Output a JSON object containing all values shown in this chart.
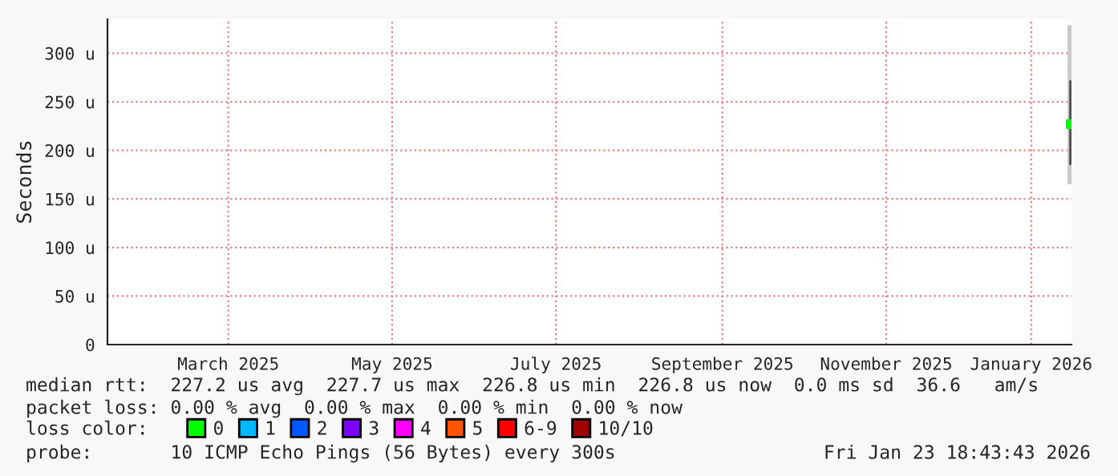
{
  "chart_data": {
    "type": "bar",
    "ylabel": "Seconds",
    "x": [
      "2026-01-22T18:00"
    ],
    "series": [
      {
        "color": "#c8c8c8",
        "base": [
          165
        ],
        "values": [
          164
        ]
      },
      {
        "color": "#505050",
        "base": [
          185
        ],
        "values": [
          87
        ]
      },
      {
        "type": "scatter",
        "name": "0",
        "color": "#00ff00",
        "values": [
          227
        ]
      },
      {
        "type": "scatter",
        "name": "1",
        "color": "#00b8ff",
        "values": [
          null
        ]
      },
      {
        "type": "scatter",
        "name": "2",
        "color": "#0059ff",
        "values": [
          null
        ]
      },
      {
        "type": "scatter",
        "name": "3",
        "color": "#7e00ff",
        "values": [
          null
        ]
      },
      {
        "type": "scatter",
        "name": "4",
        "color": "#ff00ff",
        "values": [
          null
        ]
      },
      {
        "type": "scatter",
        "name": "5",
        "color": "#ff5500",
        "values": [
          null
        ]
      },
      {
        "type": "scatter",
        "name": "6-9",
        "color": "#ff0000",
        "values": [
          null
        ]
      },
      {
        "type": "scatter",
        "name": "10/10",
        "color": "#a10000",
        "values": [
          null
        ]
      }
    ],
    "marker": "square",
    "xlim": [
      "2025-01-29",
      "2026-01-23"
    ],
    "xticks": [
      {
        "value": "2025-03-15",
        "label": "March 2025"
      },
      {
        "value": "2025-05-15",
        "label": "May 2025"
      },
      {
        "value": "2025-07-15",
        "label": "July 2025"
      },
      {
        "value": "2025-09-15",
        "label": "September 2025"
      },
      {
        "value": "2025-11-15",
        "label": "November 2025"
      },
      {
        "value": "2026-01-08",
        "label": "January 2026"
      }
    ],
    "ylim": [
      0,
      335
    ],
    "yticks": [
      0,
      {
        "value": 50,
        "label": "50 u"
      },
      {
        "value": 100,
        "label": "100 u"
      },
      {
        "value": 150,
        "label": "150 u"
      },
      {
        "value": 200,
        "label": "200 u"
      },
      {
        "value": 250,
        "label": "250 u"
      },
      {
        "value": 300,
        "label": "300 u"
      }
    ],
    "grid": true,
    "legend": "bottom",
    "annotations": [
      "median rtt:  227.2 us avg  227.7 us max  226.8 us min  226.8 us now  0.0 ms sd  36.6   am/s",
      "packet loss: 0.00 % avg  0.00 % max  0.00 % min  0.00 % now",
      "loss color:",
      "probe:       10 ICMP Echo Pings (56 Bytes) every 300s",
      "Fri Jan 23 18:43:43 2026"
    ]
  }
}
